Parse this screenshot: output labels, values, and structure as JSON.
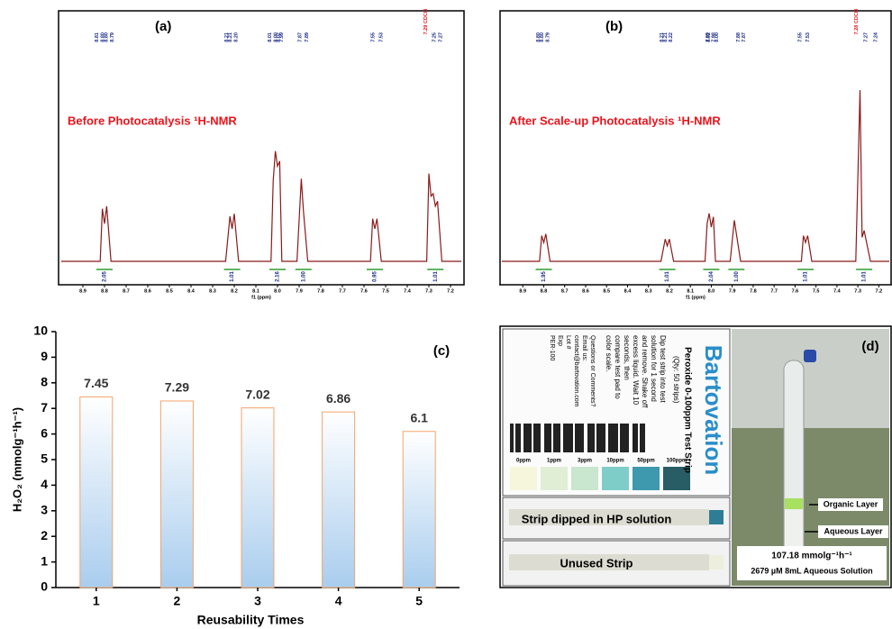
{
  "chart_data": [
    {
      "type": "line",
      "panel_label": "(a)",
      "title": "Before Photocatalysis ¹H-NMR",
      "xlabel": "f1 (ppm)",
      "color": "#8b1a1a",
      "x": [
        9.0,
        8.82,
        8.81,
        8.8,
        8.79,
        8.77,
        8.24,
        8.22,
        8.21,
        8.2,
        8.18,
        8.03,
        8.02,
        8.01,
        8.0,
        7.99,
        7.98,
        7.91,
        7.89,
        7.88,
        7.86,
        7.57,
        7.56,
        7.55,
        7.54,
        7.52,
        7.31,
        7.3,
        7.29,
        7.28,
        7.27,
        7.26,
        7.24,
        7.15
      ],
      "values": [
        0,
        0,
        21,
        15,
        22,
        0,
        0,
        18,
        13,
        19,
        0,
        0,
        32,
        44,
        38,
        40,
        0,
        0,
        33,
        20,
        0,
        0,
        17,
        13,
        17,
        0,
        0,
        35,
        26,
        27,
        22,
        24,
        0,
        0
      ],
      "xlim": [
        9.0,
        7.15
      ],
      "ylim": [
        0,
        100
      ],
      "xticks": [
        8.9,
        8.8,
        8.7,
        8.6,
        8.5,
        8.4,
        8.3,
        8.2,
        8.1,
        {
          "value": 8,
          "label": "8.0"
        },
        7.9,
        7.8,
        7.7,
        7.6,
        7.5,
        7.4,
        7.3,
        7.2
      ],
      "peak_labels": [
        "8.81",
        "8.80",
        "8.80",
        "8.79",
        "8.21",
        "8.21",
        "8.20",
        "8.02",
        "8.01",
        "8.00",
        "7.99",
        "7.89",
        "7.87",
        "7.55",
        "7.53",
        "7.27",
        "7.25"
      ],
      "solvent_peak_label": "7.29 CDCl3",
      "integrals": [
        {
          "ppm": 8.8,
          "label": "2.05"
        },
        {
          "ppm": 8.21,
          "label": "1.01"
        },
        {
          "ppm": 8.0,
          "label": "2.16"
        },
        {
          "ppm": 7.88,
          "label": "1.00"
        },
        {
          "ppm": 7.55,
          "label": "0.95"
        },
        {
          "ppm": 7.27,
          "label": "1.01"
        }
      ]
    },
    {
      "type": "line",
      "panel_label": "(b)",
      "title": "After Scale-up Photocatalysis ¹H-NMR",
      "xlabel": "f1 (ppm)",
      "color": "#8b1a1a",
      "x": [
        9.0,
        8.82,
        8.81,
        8.8,
        8.79,
        8.77,
        8.24,
        8.22,
        8.21,
        8.2,
        8.18,
        8.03,
        8.02,
        8.01,
        8.0,
        7.99,
        7.98,
        7.91,
        7.89,
        7.88,
        7.86,
        7.57,
        7.56,
        7.55,
        7.54,
        7.52,
        7.31,
        7.29,
        7.28,
        7.27,
        7.26,
        7.24,
        7.15
      ],
      "values": [
        0,
        0,
        15,
        11,
        16,
        0,
        0,
        13,
        9,
        13,
        0,
        0,
        22,
        28,
        20,
        26,
        0,
        0,
        24,
        16,
        0,
        0,
        15,
        11,
        15,
        0,
        0,
        100,
        14,
        18,
        12,
        0,
        0
      ],
      "xlim": [
        9.0,
        7.15
      ],
      "ylim": [
        0,
        100
      ],
      "xticks": [
        8.9,
        8.8,
        8.7,
        8.6,
        8.5,
        8.4,
        8.3,
        8.2,
        8.1,
        {
          "value": 8,
          "label": "8.0"
        },
        7.9,
        7.8,
        7.7,
        7.6,
        7.5,
        7.4,
        7.3,
        7.2
      ],
      "peak_labels": [
        "8.80",
        "8.80",
        "8.79",
        "8.22",
        "8.21",
        "8.21",
        "8.02",
        "8.00",
        "7.99",
        "7.98",
        "7.88",
        "7.87",
        "7.55",
        "7.53",
        "7.27",
        "7.24"
      ],
      "solvent_peak_label": "7.28 CDCl3",
      "integrals": [
        {
          "ppm": 8.8,
          "label": "1.95"
        },
        {
          "ppm": 8.21,
          "label": "1.01"
        },
        {
          "ppm": 8.0,
          "label": "2.04"
        },
        {
          "ppm": 7.88,
          "label": "1.00"
        },
        {
          "ppm": 7.55,
          "label": "1.01"
        },
        {
          "ppm": 7.27,
          "label": "1.01"
        }
      ]
    },
    {
      "type": "bar",
      "panel_label": "(c)",
      "ylabel": "H₂O₂ (mmolg⁻¹h⁻¹)",
      "xlabel": "Reusability Times",
      "categories": [
        "1",
        "2",
        "3",
        "4",
        "5"
      ],
      "values": [
        7.45,
        7.29,
        7.02,
        6.86,
        6.1
      ],
      "color": "#f4a46a",
      "ylim": [
        0,
        10
      ],
      "yticks": [
        0,
        1,
        2,
        3,
        4,
        5,
        6,
        7,
        8,
        9,
        10
      ]
    }
  ],
  "photo": {
    "panel_label": "(d)",
    "brand": "Bartovation",
    "product": "Peroxide 0-100ppm Test Strip",
    "qty": "(Qty: 50 strips)",
    "instructions": [
      "Dip test strip into test",
      "solution for 1 second",
      "and remove. Shake off",
      "excess liquid. Wait 10",
      "seconds, then",
      "compare test pad to",
      "color scale."
    ],
    "contact": [
      "Questions or Comments?",
      "Email us:",
      "contact@bartovation.com",
      "Lot #",
      "Exp",
      "PER-100"
    ],
    "scale": [
      "0ppm",
      "1ppm",
      "3ppm",
      "10ppm",
      "50ppm",
      "100ppm"
    ],
    "strip_dipped": "Strip dipped in HP solution",
    "strip_unused": "Unused Strip",
    "organic": "Organic Layer",
    "aqueous": "Aqueous Layer",
    "rate": "107.18 mmolg⁻¹h⁻¹",
    "solution": "2679 µM 8mL Aqueous Solution"
  }
}
